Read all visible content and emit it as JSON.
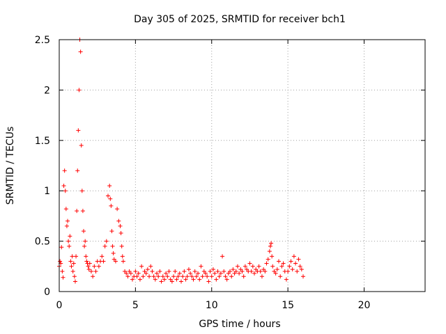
{
  "chart_data": {
    "type": "scatter",
    "title": "Day 305 of 2025, SRMTID for receiver bch1",
    "xlabel": "GPS time / hours",
    "ylabel": "SRMTID / TECUs",
    "xlim": [
      0,
      24
    ],
    "ylim": [
      0,
      2.5
    ],
    "x_ticks": [
      0,
      5,
      10,
      15,
      20
    ],
    "x_tick_labels": [
      "0",
      "5",
      "10",
      "15",
      "20"
    ],
    "y_ticks": [
      0,
      0.5,
      1,
      1.5,
      2,
      2.5
    ],
    "y_tick_labels": [
      "0",
      "0.5",
      "1",
      "1.5",
      "2",
      "2.5"
    ],
    "grid": true,
    "marker": "+",
    "marker_color": "#ff0000",
    "series": [
      {
        "name": "SRMTID",
        "x": [
          0.0,
          0.05,
          0.1,
          0.15,
          0.2,
          0.25,
          0.3,
          0.35,
          0.4,
          0.45,
          0.5,
          0.55,
          0.6,
          0.65,
          0.7,
          0.75,
          0.8,
          0.85,
          0.9,
          0.95,
          1.0,
          1.05,
          1.1,
          1.15,
          1.2,
          1.25,
          1.3,
          1.35,
          1.4,
          1.45,
          1.5,
          1.55,
          1.6,
          1.65,
          1.7,
          1.75,
          1.8,
          1.85,
          1.9,
          1.95,
          2.0,
          2.1,
          2.2,
          2.3,
          2.4,
          2.5,
          2.6,
          2.7,
          2.8,
          2.9,
          3.0,
          3.1,
          3.2,
          3.3,
          3.35,
          3.4,
          3.45,
          3.5,
          3.55,
          3.6,
          3.7,
          3.8,
          3.9,
          4.0,
          4.05,
          4.1,
          4.15,
          4.2,
          4.3,
          4.4,
          4.5,
          4.6,
          4.7,
          4.8,
          4.9,
          5.0,
          5.1,
          5.2,
          5.3,
          5.4,
          5.5,
          5.6,
          5.7,
          5.8,
          5.9,
          6.0,
          6.1,
          6.2,
          6.3,
          6.4,
          6.5,
          6.6,
          6.7,
          6.8,
          6.9,
          7.0,
          7.1,
          7.2,
          7.3,
          7.4,
          7.5,
          7.6,
          7.7,
          7.8,
          7.9,
          8.0,
          8.1,
          8.2,
          8.3,
          8.4,
          8.5,
          8.6,
          8.7,
          8.8,
          8.9,
          9.0,
          9.1,
          9.2,
          9.3,
          9.4,
          9.5,
          9.6,
          9.7,
          9.8,
          9.9,
          10.0,
          10.1,
          10.2,
          10.3,
          10.4,
          10.5,
          10.6,
          10.7,
          10.8,
          10.9,
          11.0,
          11.1,
          11.2,
          11.3,
          11.4,
          11.5,
          11.6,
          11.7,
          11.8,
          11.9,
          12.0,
          12.1,
          12.2,
          12.3,
          12.4,
          12.5,
          12.6,
          12.7,
          12.8,
          12.9,
          13.0,
          13.1,
          13.2,
          13.3,
          13.4,
          13.5,
          13.6,
          13.7,
          13.8,
          13.85,
          13.9,
          13.95,
          14.0,
          14.1,
          14.2,
          14.3,
          14.4,
          14.5,
          14.6,
          14.7,
          14.8,
          14.9,
          15.0,
          15.1,
          15.2,
          15.3,
          15.4,
          15.5,
          15.6,
          15.7,
          15.8,
          15.9,
          16.0
        ],
        "y": [
          0.25,
          0.3,
          0.28,
          0.44,
          0.2,
          0.14,
          1.05,
          1.2,
          1.0,
          0.82,
          0.65,
          0.7,
          0.5,
          0.45,
          0.55,
          0.3,
          0.25,
          0.35,
          0.2,
          0.28,
          0.15,
          0.1,
          0.35,
          0.8,
          1.2,
          1.6,
          2.0,
          2.5,
          2.38,
          1.45,
          1.0,
          0.8,
          0.6,
          0.45,
          0.5,
          0.35,
          0.3,
          0.28,
          0.25,
          0.22,
          0.28,
          0.2,
          0.15,
          0.25,
          0.2,
          0.3,
          0.25,
          0.3,
          0.35,
          0.3,
          0.45,
          0.5,
          0.95,
          1.05,
          0.92,
          0.85,
          0.6,
          0.45,
          0.38,
          0.32,
          0.3,
          0.82,
          0.7,
          0.65,
          0.58,
          0.45,
          0.35,
          0.3,
          0.2,
          0.18,
          0.15,
          0.2,
          0.18,
          0.12,
          0.15,
          0.2,
          0.15,
          0.18,
          0.12,
          0.25,
          0.15,
          0.2,
          0.18,
          0.22,
          0.15,
          0.25,
          0.2,
          0.15,
          0.12,
          0.18,
          0.15,
          0.2,
          0.1,
          0.15,
          0.12,
          0.18,
          0.15,
          0.2,
          0.12,
          0.1,
          0.15,
          0.2,
          0.12,
          0.15,
          0.18,
          0.1,
          0.15,
          0.2,
          0.12,
          0.15,
          0.22,
          0.18,
          0.15,
          0.12,
          0.2,
          0.15,
          0.18,
          0.12,
          0.25,
          0.15,
          0.2,
          0.18,
          0.15,
          0.1,
          0.2,
          0.15,
          0.22,
          0.18,
          0.12,
          0.2,
          0.15,
          0.18,
          0.35,
          0.2,
          0.15,
          0.12,
          0.18,
          0.2,
          0.15,
          0.22,
          0.18,
          0.2,
          0.25,
          0.18,
          0.22,
          0.2,
          0.15,
          0.25,
          0.22,
          0.2,
          0.28,
          0.2,
          0.25,
          0.18,
          0.22,
          0.2,
          0.25,
          0.2,
          0.15,
          0.22,
          0.2,
          0.28,
          0.32,
          0.4,
          0.45,
          0.48,
          0.35,
          0.25,
          0.2,
          0.18,
          0.22,
          0.3,
          0.15,
          0.25,
          0.28,
          0.2,
          0.12,
          0.2,
          0.25,
          0.3,
          0.22,
          0.35,
          0.28,
          0.2,
          0.32,
          0.25,
          0.22,
          0.15
        ]
      }
    ]
  }
}
